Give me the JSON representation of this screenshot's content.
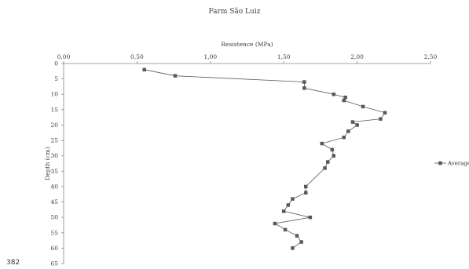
{
  "page_number": "382",
  "colors": {
    "series": "#595959",
    "axis": "#868686",
    "text": "#404040"
  },
  "chart_data": {
    "type": "line",
    "title": "Farm São Luiz",
    "xlabel": "Resistence (MPa)",
    "ylabel": "Depth (cm)",
    "x_axis_position": "top",
    "y_axis_inverted": true,
    "xlim": [
      0,
      2.5
    ],
    "ylim": [
      0,
      65
    ],
    "x_ticks": [
      "0,00",
      "0,50",
      "1,00",
      "1,50",
      "2,00",
      "2,50"
    ],
    "x_tick_values": [
      0,
      0.5,
      1.0,
      1.5,
      2.0,
      2.5
    ],
    "y_ticks": [
      "0",
      "5",
      "10",
      "15",
      "20",
      "25",
      "30",
      "35",
      "40",
      "45",
      "50",
      "55",
      "60",
      "65"
    ],
    "y_tick_values": [
      0,
      5,
      10,
      15,
      20,
      25,
      30,
      35,
      40,
      45,
      50,
      55,
      60,
      65
    ],
    "grid": false,
    "legend_position": "right",
    "marker": "square",
    "series": [
      {
        "name": "Average",
        "points": [
          {
            "x": 0.55,
            "y": 2
          },
          {
            "x": 0.76,
            "y": 4
          },
          {
            "x": 1.64,
            "y": 6
          },
          {
            "x": 1.64,
            "y": 8
          },
          {
            "x": 1.84,
            "y": 10
          },
          {
            "x": 1.92,
            "y": 11
          },
          {
            "x": 1.91,
            "y": 12
          },
          {
            "x": 2.04,
            "y": 14
          },
          {
            "x": 2.19,
            "y": 16
          },
          {
            "x": 2.16,
            "y": 18
          },
          {
            "x": 1.97,
            "y": 19
          },
          {
            "x": 2.0,
            "y": 20
          },
          {
            "x": 1.94,
            "y": 22
          },
          {
            "x": 1.91,
            "y": 24
          },
          {
            "x": 1.76,
            "y": 26
          },
          {
            "x": 1.83,
            "y": 28
          },
          {
            "x": 1.84,
            "y": 30
          },
          {
            "x": 1.8,
            "y": 32
          },
          {
            "x": 1.78,
            "y": 34
          },
          {
            "x": 1.65,
            "y": 40
          },
          {
            "x": 1.65,
            "y": 42
          },
          {
            "x": 1.56,
            "y": 44
          },
          {
            "x": 1.53,
            "y": 46
          },
          {
            "x": 1.5,
            "y": 48
          },
          {
            "x": 1.68,
            "y": 50
          },
          {
            "x": 1.44,
            "y": 52
          },
          {
            "x": 1.51,
            "y": 54
          },
          {
            "x": 1.59,
            "y": 56
          },
          {
            "x": 1.62,
            "y": 58
          },
          {
            "x": 1.56,
            "y": 60
          }
        ]
      }
    ]
  }
}
